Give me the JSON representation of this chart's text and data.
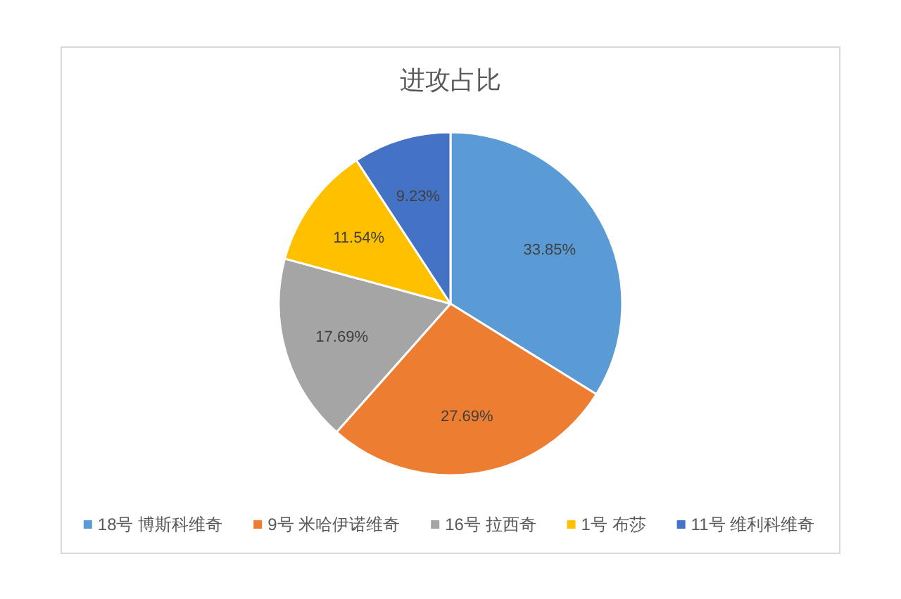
{
  "chart_data": {
    "type": "pie",
    "title": "进攻占比",
    "categories": [
      "18号 博斯科维奇",
      "9号 米哈伊诺维奇",
      "16号 拉西奇",
      "1号 布莎",
      "11号 维利科维奇"
    ],
    "values": [
      33.85,
      27.69,
      17.69,
      11.54,
      9.23
    ],
    "colors": [
      "#5b9bd5",
      "#ed7d31",
      "#a5a5a5",
      "#ffc000",
      "#4472c4"
    ],
    "value_labels": [
      "33.85%",
      "27.69%",
      "17.69%",
      "11.54%",
      "9.23%"
    ],
    "legend": "bottom"
  }
}
